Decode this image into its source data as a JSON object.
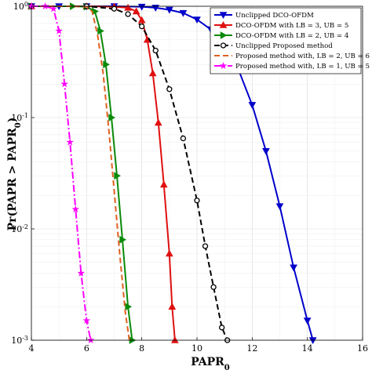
{
  "chart_data": {
    "type": "line",
    "title": "",
    "xlabel": "PAPR",
    "xlabel_sub": "0",
    "ylabel_parts": [
      "Pr(PAPR > PAPR",
      "0",
      ")"
    ],
    "xlim": [
      4,
      16
    ],
    "ylim": [
      0.001,
      1
    ],
    "yscale": "log",
    "grid": true,
    "legend_position": "top-right",
    "x_ticks": [
      "4",
      "6",
      "8",
      "10",
      "12",
      "14",
      "16"
    ],
    "y_ticks": [
      {
        "base": "10",
        "exp": "0"
      },
      {
        "base": "10",
        "exp": "-1"
      },
      {
        "base": "10",
        "exp": "-2"
      },
      {
        "base": "10",
        "exp": "-3"
      }
    ],
    "series": [
      {
        "name": "Unclipped DCO-OFDM",
        "color": "#0000cc",
        "dash": "solid",
        "marker": "triangle-down",
        "x": [
          4.0,
          5.0,
          6.0,
          7.0,
          8.0,
          8.5,
          9.0,
          9.5,
          10.0,
          10.5,
          11.0,
          11.5,
          12.0,
          12.5,
          13.0,
          13.5,
          14.0,
          14.2
        ],
        "y": [
          1.0,
          1.0,
          1.0,
          1.0,
          0.99,
          0.97,
          0.93,
          0.87,
          0.76,
          0.62,
          0.45,
          0.27,
          0.13,
          0.05,
          0.016,
          0.0045,
          0.0015,
          0.001
        ]
      },
      {
        "name": "DCO-OFDM with LB = 3, UB = 5",
        "color": "#e01010",
        "dash": "solid",
        "marker": "triangle-up",
        "x": [
          4.0,
          6.0,
          7.0,
          7.5,
          7.8,
          8.0,
          8.2,
          8.4,
          8.6,
          8.8,
          9.0,
          9.1,
          9.2
        ],
        "y": [
          1.0,
          1.0,
          0.99,
          0.97,
          0.9,
          0.75,
          0.5,
          0.25,
          0.09,
          0.025,
          0.006,
          0.002,
          0.001
        ]
      },
      {
        "name": "DCO-OFDM with LB = 2, UB = 4",
        "color": "#0a8a0a",
        "dash": "solid",
        "marker": "triangle-right",
        "x": [
          4.0,
          5.5,
          6.0,
          6.3,
          6.5,
          6.7,
          6.9,
          7.1,
          7.3,
          7.5,
          7.65
        ],
        "y": [
          1.0,
          1.0,
          0.99,
          0.9,
          0.6,
          0.3,
          0.1,
          0.03,
          0.008,
          0.002,
          0.001
        ]
      },
      {
        "name": "Unclipped Proposed method",
        "color": "#000000",
        "dash": "dashed",
        "marker": "circle-open",
        "x": [
          4.0,
          6.0,
          7.0,
          7.5,
          8.0,
          8.5,
          9.0,
          9.5,
          10.0,
          10.3,
          10.6,
          10.9,
          11.1
        ],
        "y": [
          1.0,
          1.0,
          0.95,
          0.85,
          0.66,
          0.4,
          0.18,
          0.065,
          0.018,
          0.007,
          0.003,
          0.0013,
          0.001
        ]
      },
      {
        "name": "Proposed method with, LB = 2, UB = 6",
        "color": "#e06020",
        "dash": "dashed",
        "marker": "none",
        "x": [
          4.0,
          5.5,
          6.0,
          6.2,
          6.4,
          6.6,
          6.8,
          7.0,
          7.2,
          7.4,
          7.55
        ],
        "y": [
          1.0,
          1.0,
          0.99,
          0.9,
          0.55,
          0.25,
          0.08,
          0.022,
          0.006,
          0.0018,
          0.001
        ]
      },
      {
        "name": "Proposed method with, LB = 1, UB = 5",
        "color": "#ff00ff",
        "dash": "dashdot",
        "marker": "star",
        "x": [
          4.0,
          4.5,
          4.8,
          5.0,
          5.2,
          5.4,
          5.6,
          5.8,
          6.0,
          6.15
        ],
        "y": [
          1.0,
          1.0,
          0.95,
          0.6,
          0.2,
          0.06,
          0.015,
          0.004,
          0.0015,
          0.001
        ]
      }
    ]
  }
}
